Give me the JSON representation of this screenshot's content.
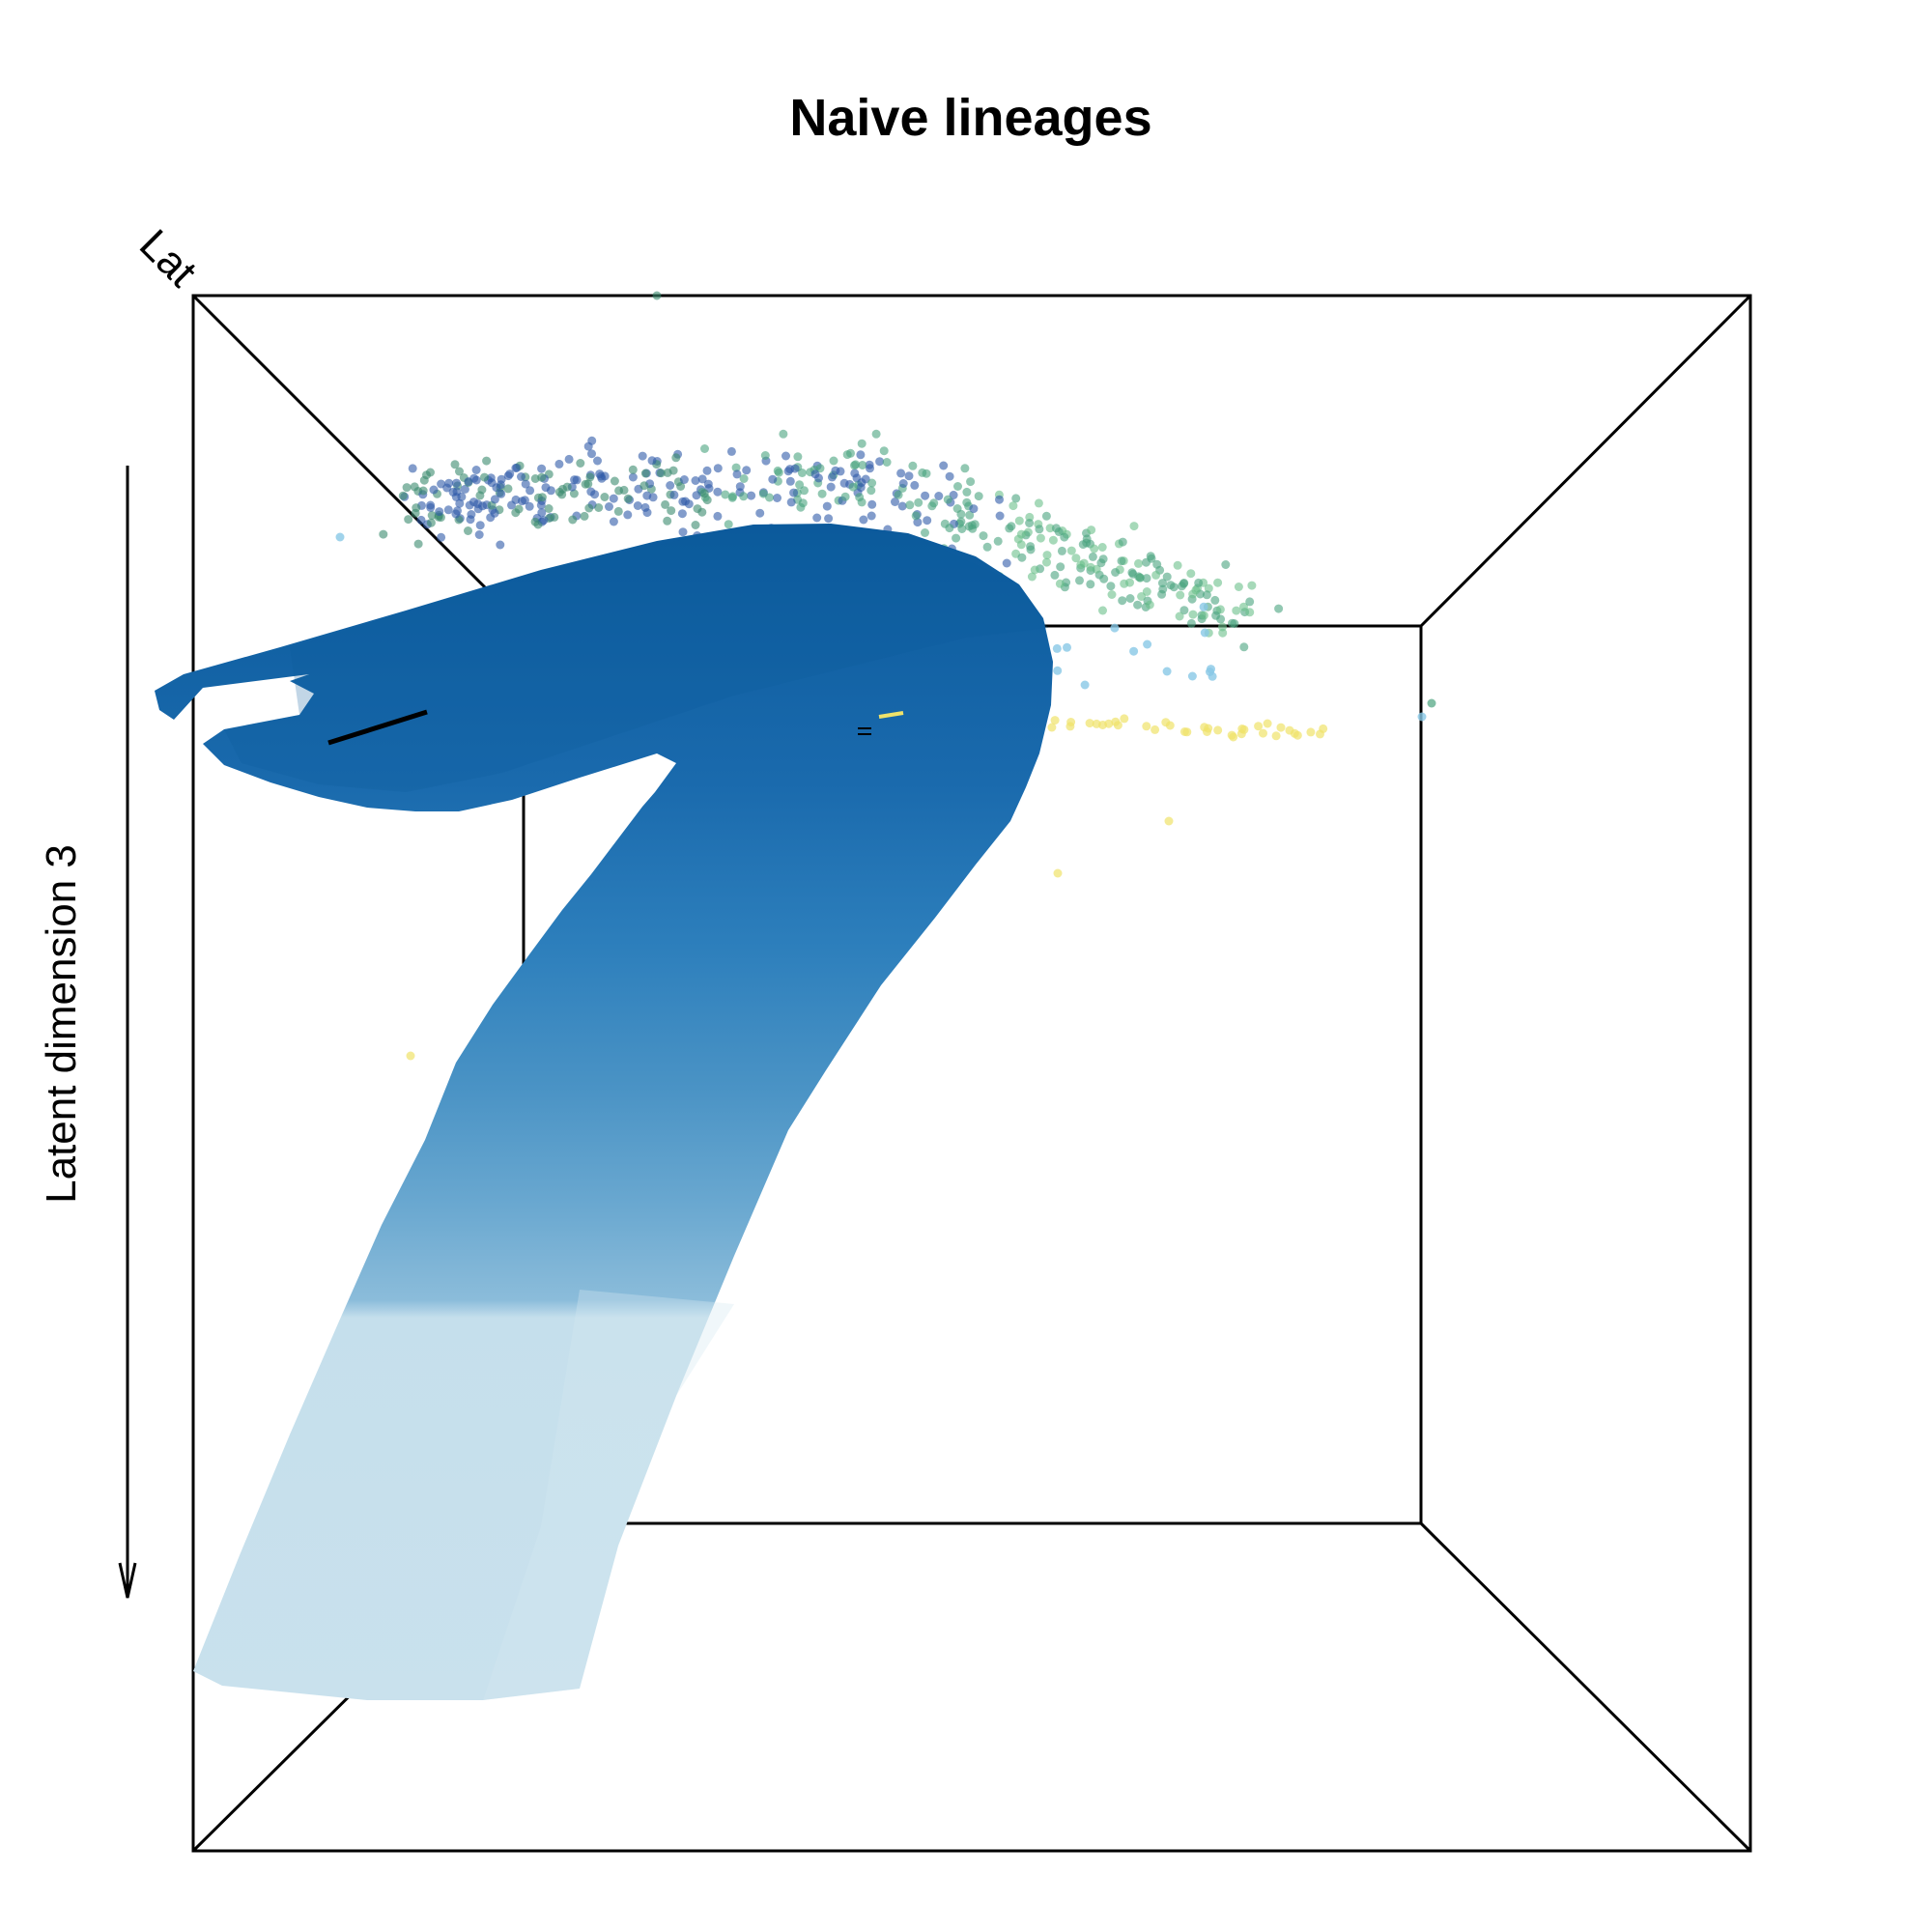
{
  "chart_data": {
    "type": "scatter",
    "projection": "3d-perspective",
    "title": "Naive lineages",
    "axis_labels": {
      "z": "Latent dimension 3",
      "depth": "Lat"
    },
    "grid": false,
    "legend": "none",
    "surface": {
      "type": "tube",
      "color_ramp": [
        "#0b5a9c",
        "#1a6aad",
        "#2d7fbc",
        "#4a93c5",
        "#6aa8d0",
        "#8bbcda",
        "#c5dfec"
      ]
    },
    "point_colors": [
      "#2f5aa8",
      "#3b8a6e",
      "#4aa37e",
      "#6bbf8a",
      "#88c8e6",
      "#efe26a"
    ],
    "overlay_segment": {
      "color": "#000000"
    }
  }
}
